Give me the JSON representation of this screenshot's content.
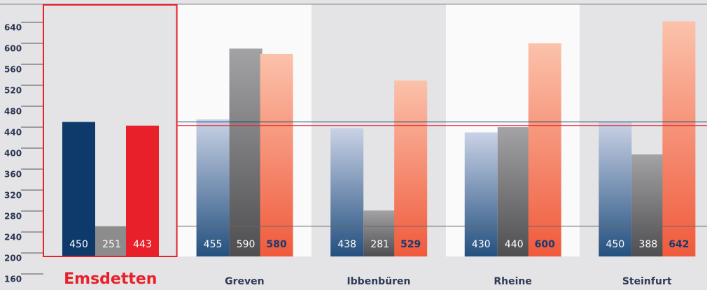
{
  "chart_data": {
    "type": "bar",
    "categories": [
      "Emsdetten",
      "Greven",
      "Ibbenbüren",
      "Rheine",
      "Steinfurt"
    ],
    "series": [
      {
        "color": "#0d3a6a",
        "values": [
          450,
          455,
          438,
          430,
          450
        ]
      },
      {
        "color": "#8c8c8c",
        "values": [
          251,
          590,
          281,
          440,
          388
        ]
      },
      {
        "color": "#e8202a",
        "values": [
          443,
          580,
          529,
          600,
          642
        ]
      }
    ],
    "ylim": [
      160,
      680
    ],
    "yticks": [
      160,
      200,
      240,
      280,
      320,
      360,
      400,
      440,
      480,
      520,
      560,
      600,
      640
    ],
    "grid": true
  }
}
